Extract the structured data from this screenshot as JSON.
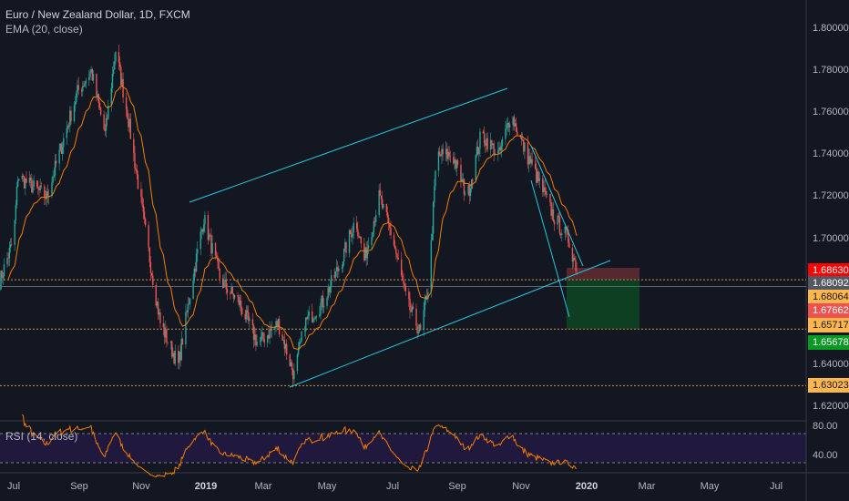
{
  "header": {
    "symbol_title": "Euro / New Zealand Dollar, 1D, FXCM",
    "indicator": "EMA (20, close)"
  },
  "rsi": {
    "label": "RSI (14, close)",
    "axis": [
      "80.00",
      "40.00"
    ],
    "upper_band": 70,
    "lower_band": 30
  },
  "price_axis": [
    "1.80000",
    "1.78000",
    "1.76000",
    "1.74000",
    "1.72000",
    "1.70000",
    "1.64000",
    "1.62000"
  ],
  "price_tags": [
    {
      "value": "1.68630",
      "bg": "#ff0000",
      "fg": "#ffffff"
    },
    {
      "value": "1.68092",
      "bg": "#555861",
      "fg": "#ffffff"
    },
    {
      "value": "1.68064",
      "bg": "#ffb74d",
      "fg": "#131722"
    },
    {
      "value": "1.67662",
      "bg": "#ef5350",
      "fg": "#ffffff"
    },
    {
      "value": "1.65717",
      "bg": "#ffb74d",
      "fg": "#131722"
    },
    {
      "value": "1.65678",
      "bg": "#089a23",
      "fg": "#ffffff"
    },
    {
      "value": "1.63023",
      "bg": "#ffb74d",
      "fg": "#131722"
    }
  ],
  "time_axis": [
    "Jul",
    "Sep",
    "Nov",
    "2019",
    "Mar",
    "May",
    "Jul",
    "Sep",
    "Nov",
    "2020",
    "Mar",
    "May",
    "Jul"
  ],
  "colors": {
    "bg": "#131722",
    "up": "#26a69a",
    "down": "#ef5350",
    "ema": "#f57c00",
    "drawing": "#26c6da",
    "rsi": "#f57c00"
  },
  "chart_data": {
    "type": "candlestick",
    "symbol": "EURNZD",
    "ylim": [
      1.615,
      1.81
    ],
    "path": [
      [
        "2018-06-18",
        1.68
      ],
      [
        "2018-07-01",
        1.7
      ],
      [
        "2018-07-05",
        1.73
      ],
      [
        "2018-08-01",
        1.72
      ],
      [
        "2018-08-30",
        1.77
      ],
      [
        "2018-09-12",
        1.78
      ],
      [
        "2018-09-25",
        1.75
      ],
      [
        "2018-10-05",
        1.79
      ],
      [
        "2018-10-16",
        1.76
      ],
      [
        "2018-11-03",
        1.7
      ],
      [
        "2018-11-16",
        1.66
      ],
      [
        "2018-12-03",
        1.64
      ],
      [
        "2018-12-16",
        1.68
      ],
      [
        "2018-12-27",
        1.71
      ],
      [
        "2019-01-12",
        1.68
      ],
      [
        "2019-01-29",
        1.67
      ],
      [
        "2019-02-16",
        1.65
      ],
      [
        "2019-03-07",
        1.66
      ],
      [
        "2019-03-22",
        1.635
      ],
      [
        "2019-04-01",
        1.66
      ],
      [
        "2019-04-18",
        1.67
      ],
      [
        "2019-05-06",
        1.69
      ],
      [
        "2019-05-19",
        1.71
      ],
      [
        "2019-05-27",
        1.69
      ],
      [
        "2019-06-10",
        1.72
      ],
      [
        "2019-06-23",
        1.7
      ],
      [
        "2019-07-06",
        1.67
      ],
      [
        "2019-07-19",
        1.655
      ],
      [
        "2019-07-27",
        1.68
      ],
      [
        "2019-08-03",
        1.74
      ],
      [
        "2019-08-18",
        1.74
      ],
      [
        "2019-09-01",
        1.72
      ],
      [
        "2019-09-14",
        1.75
      ],
      [
        "2019-10-01",
        1.74
      ],
      [
        "2019-10-12",
        1.76
      ],
      [
        "2019-10-23",
        1.745
      ],
      [
        "2019-11-05",
        1.73
      ],
      [
        "2019-11-22",
        1.71
      ],
      [
        "2019-12-05",
        1.7
      ],
      [
        "2019-12-16",
        1.681
      ]
    ],
    "position": {
      "entry": 1.68064,
      "stop": 1.6863,
      "target": 1.65717
    },
    "horizontal_levels": [
      1.68064,
      1.65717,
      1.63023
    ]
  }
}
